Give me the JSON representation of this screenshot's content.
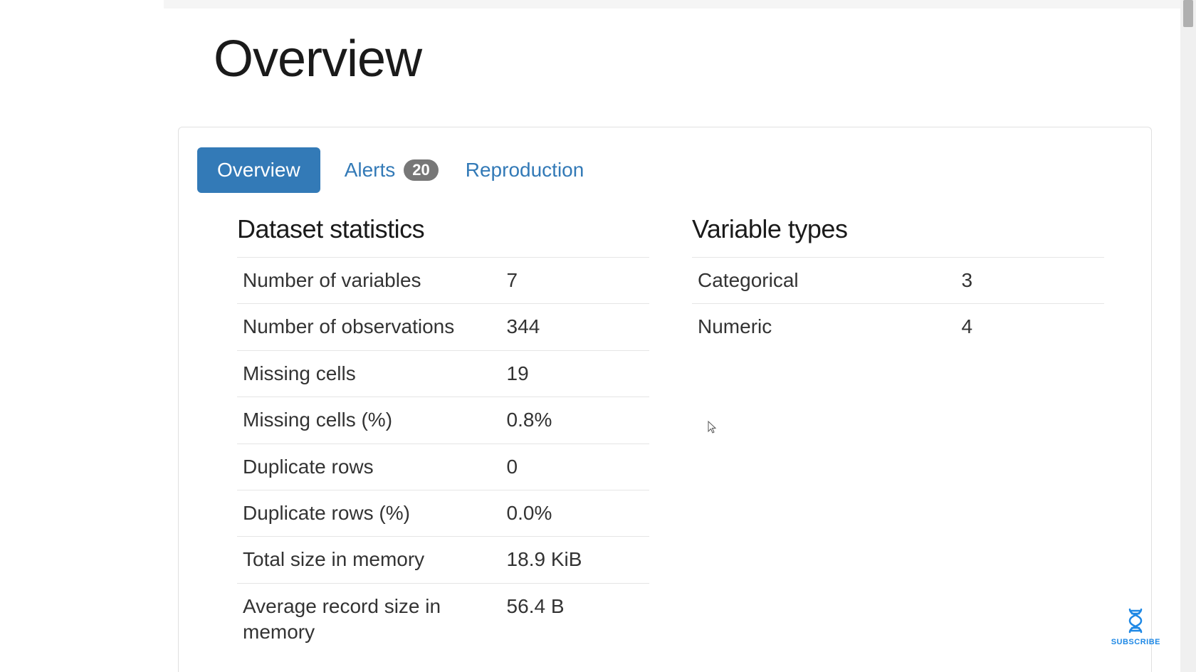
{
  "page": {
    "title": "Overview"
  },
  "tabs": {
    "overview": "Overview",
    "alerts": "Alerts",
    "alerts_count": "20",
    "reproduction": "Reproduction"
  },
  "sections": {
    "dataset_stats_title": "Dataset statistics",
    "variable_types_title": "Variable types"
  },
  "dataset_stats": [
    {
      "label": "Number of variables",
      "value": "7"
    },
    {
      "label": "Number of observations",
      "value": "344"
    },
    {
      "label": "Missing cells",
      "value": "19"
    },
    {
      "label": "Missing cells (%)",
      "value": "0.8%"
    },
    {
      "label": "Duplicate rows",
      "value": "0"
    },
    {
      "label": "Duplicate rows (%)",
      "value": "0.0%"
    },
    {
      "label": "Total size in memory",
      "value": "18.9 KiB"
    },
    {
      "label": "Average record size in memory",
      "value": "56.4 B"
    }
  ],
  "variable_types": [
    {
      "label": "Categorical",
      "value": "3"
    },
    {
      "label": "Numeric",
      "value": "4"
    }
  ],
  "subscribe": {
    "label": "SUBSCRIBE"
  },
  "colors": {
    "tab_active_bg": "#337ab7",
    "tab_link_color": "#337ab7",
    "badge_bg": "#777777",
    "border": "#e0e0e0",
    "row_border": "#e5e5e5",
    "subscribe_color": "#1e88e5"
  }
}
